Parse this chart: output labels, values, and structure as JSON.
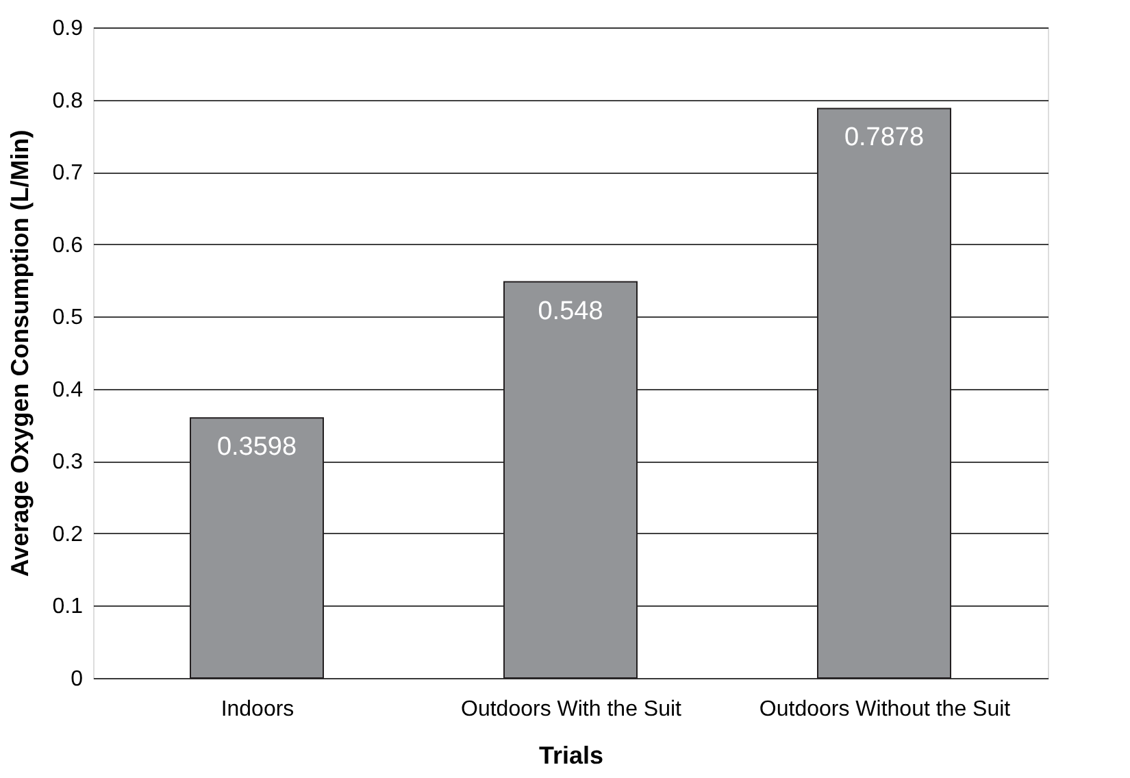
{
  "chart_data": {
    "type": "bar",
    "xlabel": "Trials",
    "ylabel": "Average Oxygen Consumption (L/Min)",
    "categories": [
      "Indoors",
      "Outdoors With the Suit",
      "Outdoors Without the Suit"
    ],
    "values": [
      0.3598,
      0.548,
      0.7878
    ],
    "color": "#939598",
    "ylim": [
      0,
      0.9
    ],
    "yticks": [
      0,
      0.1,
      0.2,
      0.3,
      0.4,
      0.5,
      0.6,
      0.7,
      0.8,
      0.9
    ],
    "grid": "y",
    "data_labels": true
  }
}
